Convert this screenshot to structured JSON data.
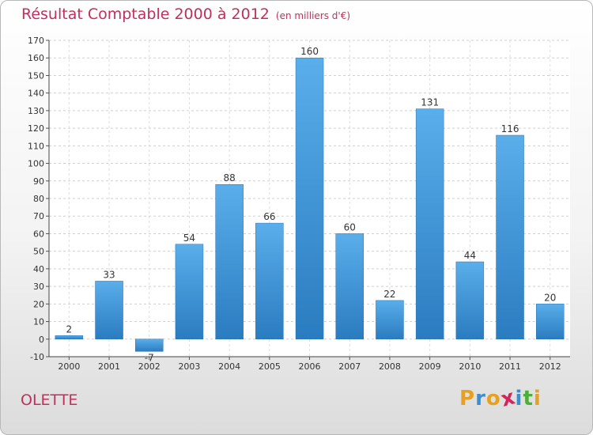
{
  "chart_data": {
    "type": "bar",
    "title": "Résultat Comptable 2000 à 2012",
    "subtitle": "(en milliers d'€)",
    "categories": [
      "2000",
      "2001",
      "2002",
      "2003",
      "2004",
      "2005",
      "2006",
      "2007",
      "2008",
      "2009",
      "2010",
      "2011",
      "2012"
    ],
    "values": [
      2,
      33,
      -7,
      54,
      88,
      66,
      160,
      60,
      22,
      131,
      44,
      116,
      20
    ],
    "data_labels": [
      "2",
      "33",
      "-7",
      "54",
      "88",
      "66",
      "160",
      "60",
      "22",
      "131",
      "44",
      "116",
      "20"
    ],
    "yticks": [
      -10,
      0,
      10,
      20,
      30,
      40,
      50,
      60,
      70,
      80,
      90,
      100,
      110,
      120,
      130,
      140,
      150,
      160,
      170
    ],
    "ylim": [
      -10,
      170
    ],
    "xlabel": "",
    "ylabel": "",
    "grid": true,
    "bar_color": "#3a8fd6"
  },
  "footer": {
    "commune": "OLETTE",
    "logo_letters": [
      "P",
      "r",
      "o",
      "x",
      "i",
      "t",
      "i"
    ],
    "logo_colors": [
      "#e8a020",
      "#3b8ed0",
      "#e8a020",
      "#d4245a",
      "#3b8ed0",
      "#4caf3a",
      "#e8a020"
    ]
  }
}
